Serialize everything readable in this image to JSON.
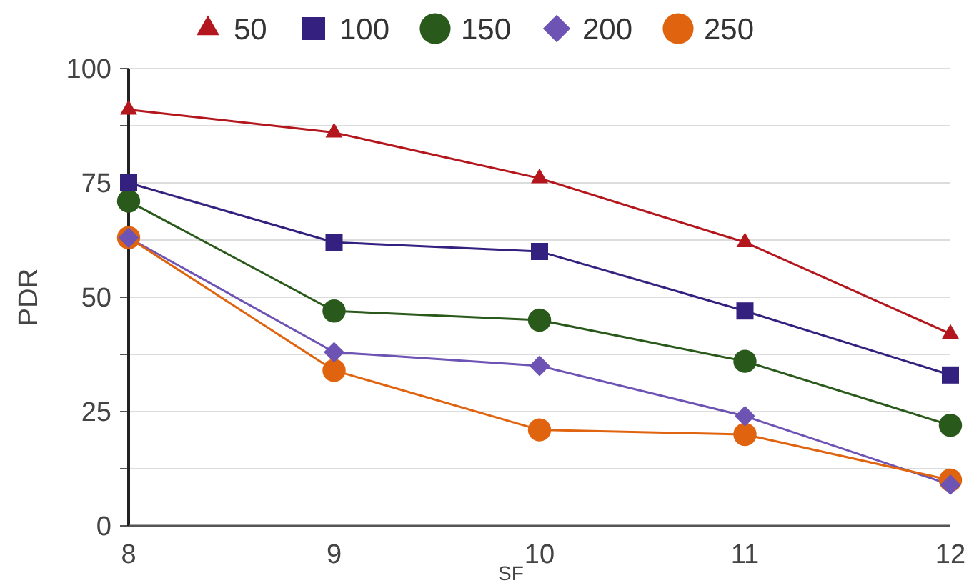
{
  "chart_data": {
    "type": "line",
    "xlabel": "SF",
    "ylabel": "PDR",
    "x": [
      8,
      9,
      10,
      11,
      12
    ],
    "xlim": [
      8,
      12
    ],
    "xticks": [
      8,
      9,
      10,
      11,
      12
    ],
    "ylim": [
      0,
      100
    ],
    "yticks": [
      0,
      {
        "value": 12.5,
        "label": null
      },
      25,
      {
        "value": 37.5,
        "label": null
      },
      50,
      {
        "value": 62.5,
        "label": null
      },
      75,
      {
        "value": 87.5,
        "label": null
      },
      100
    ],
    "grid": "y",
    "legend": "top",
    "line_style": "solid",
    "series": [
      {
        "name": "50",
        "color": "#b3171d",
        "marker": "triangle",
        "values": [
          91,
          86,
          76,
          62,
          42
        ]
      },
      {
        "name": "100",
        "color": "#34207e",
        "marker": "square",
        "values": [
          75,
          62,
          60,
          47,
          33
        ]
      },
      {
        "name": "150",
        "color": "#2a5a1b",
        "marker": "circle",
        "values": [
          71,
          47,
          45,
          36,
          22
        ]
      },
      {
        "name": "200",
        "color": "#6c53b4",
        "marker": "diamond",
        "values": [
          63,
          38,
          35,
          24,
          9
        ]
      },
      {
        "name": "250",
        "color": "#e0640f",
        "marker": "circle",
        "values": [
          63,
          34,
          21,
          20,
          10
        ]
      }
    ]
  }
}
